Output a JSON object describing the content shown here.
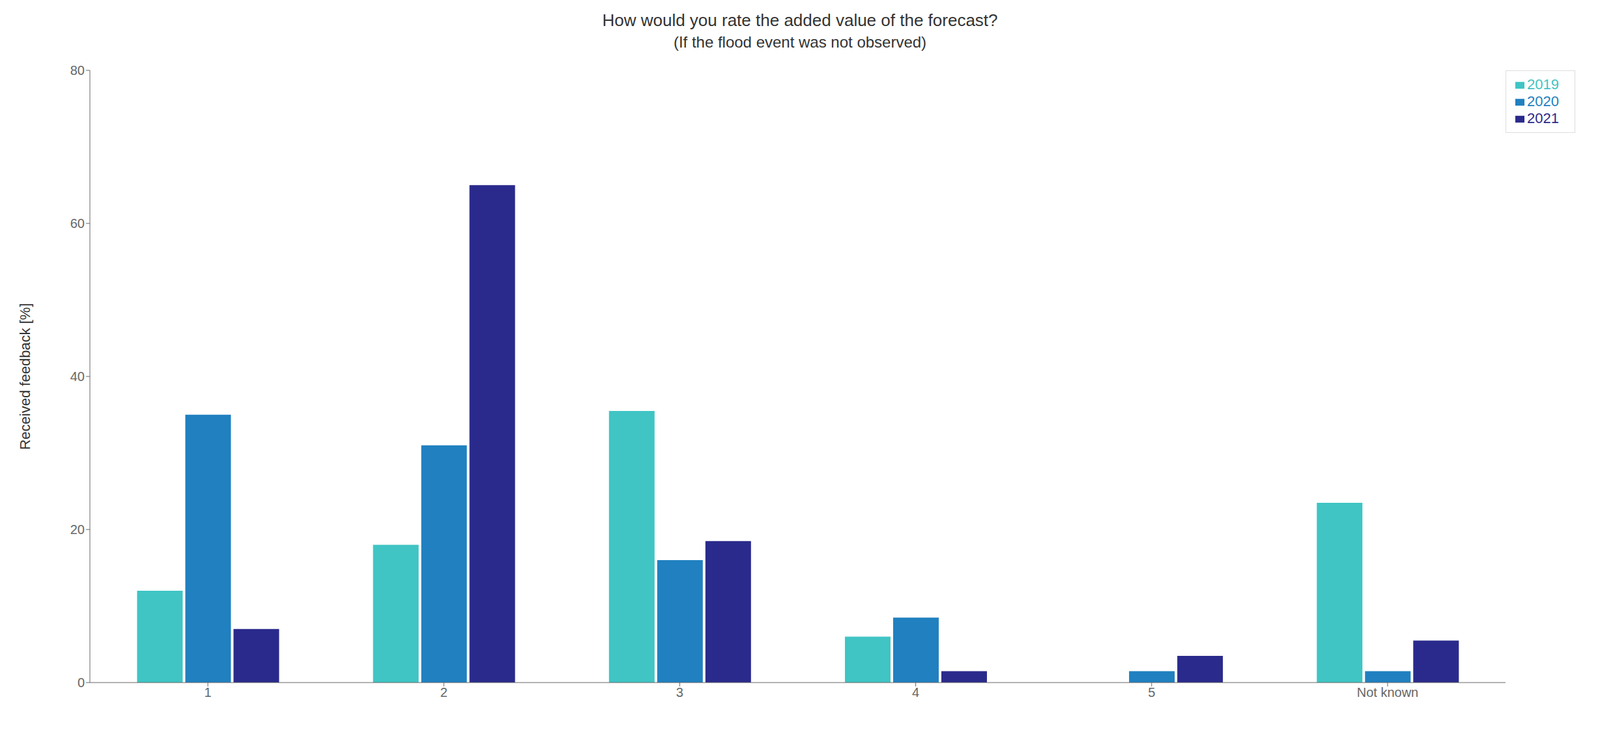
{
  "chart_data": {
    "type": "bar",
    "title": "How would you rate the added value of the forecast?",
    "subtitle": "(If the flood event was not observed)",
    "ylabel": "Received feedback [%]",
    "categories": [
      "1",
      "2",
      "3",
      "4",
      "5",
      "Not known"
    ],
    "series": [
      {
        "name": "2019",
        "color": "#40C4C4",
        "values": [
          12,
          18,
          35.5,
          6,
          0,
          23.5
        ]
      },
      {
        "name": "2020",
        "color": "#2080C0",
        "values": [
          35,
          31,
          16,
          8.5,
          1.5,
          1.5
        ]
      },
      {
        "name": "2021",
        "color": "#2A2A8C",
        "values": [
          7,
          65,
          18.5,
          1.5,
          3.5,
          5.5
        ]
      }
    ],
    "ylim": [
      0,
      80
    ],
    "yticks": [
      0,
      20,
      40,
      60,
      80
    ],
    "grid": false,
    "legend": "upper right"
  }
}
